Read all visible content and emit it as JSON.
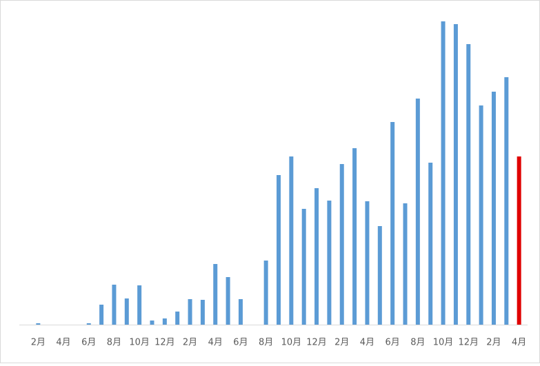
{
  "chart_data": {
    "type": "bar",
    "categories": [
      null,
      "2月",
      null,
      "4月",
      null,
      "6月",
      null,
      "8月",
      null,
      "10月",
      null,
      "12月",
      null,
      "2月",
      null,
      "4月",
      null,
      "6月",
      null,
      "8月",
      null,
      "10月",
      null,
      "12月",
      null,
      "2月",
      null,
      "4月",
      null,
      "6月",
      null,
      "8月",
      null,
      "10月",
      null,
      "12月",
      null,
      "2月",
      null,
      "4月"
    ],
    "values": [
      0,
      2,
      0,
      0,
      0,
      2,
      29,
      58,
      38,
      57,
      6,
      9,
      19,
      37,
      36,
      88,
      69,
      37,
      0,
      93,
      217,
      244,
      168,
      198,
      180,
      233,
      256,
      179,
      143,
      294,
      176,
      328,
      235,
      440,
      436,
      407,
      318,
      338,
      359,
      244
    ],
    "colors": [
      "#5b9bd5",
      "#5b9bd5",
      "#5b9bd5",
      "#5b9bd5",
      "#5b9bd5",
      "#5b9bd5",
      "#5b9bd5",
      "#5b9bd5",
      "#5b9bd5",
      "#5b9bd5",
      "#5b9bd5",
      "#5b9bd5",
      "#5b9bd5",
      "#5b9bd5",
      "#5b9bd5",
      "#5b9bd5",
      "#5b9bd5",
      "#5b9bd5",
      "#5b9bd5",
      "#5b9bd5",
      "#5b9bd5",
      "#5b9bd5",
      "#5b9bd5",
      "#5b9bd5",
      "#5b9bd5",
      "#5b9bd5",
      "#5b9bd5",
      "#5b9bd5",
      "#5b9bd5",
      "#5b9bd5",
      "#5b9bd5",
      "#5b9bd5",
      "#5b9bd5",
      "#5b9bd5",
      "#5b9bd5",
      "#5b9bd5",
      "#5b9bd5",
      "#5b9bd5",
      "#5b9bd5",
      "#e00000"
    ],
    "ylim": [
      0,
      450
    ]
  }
}
